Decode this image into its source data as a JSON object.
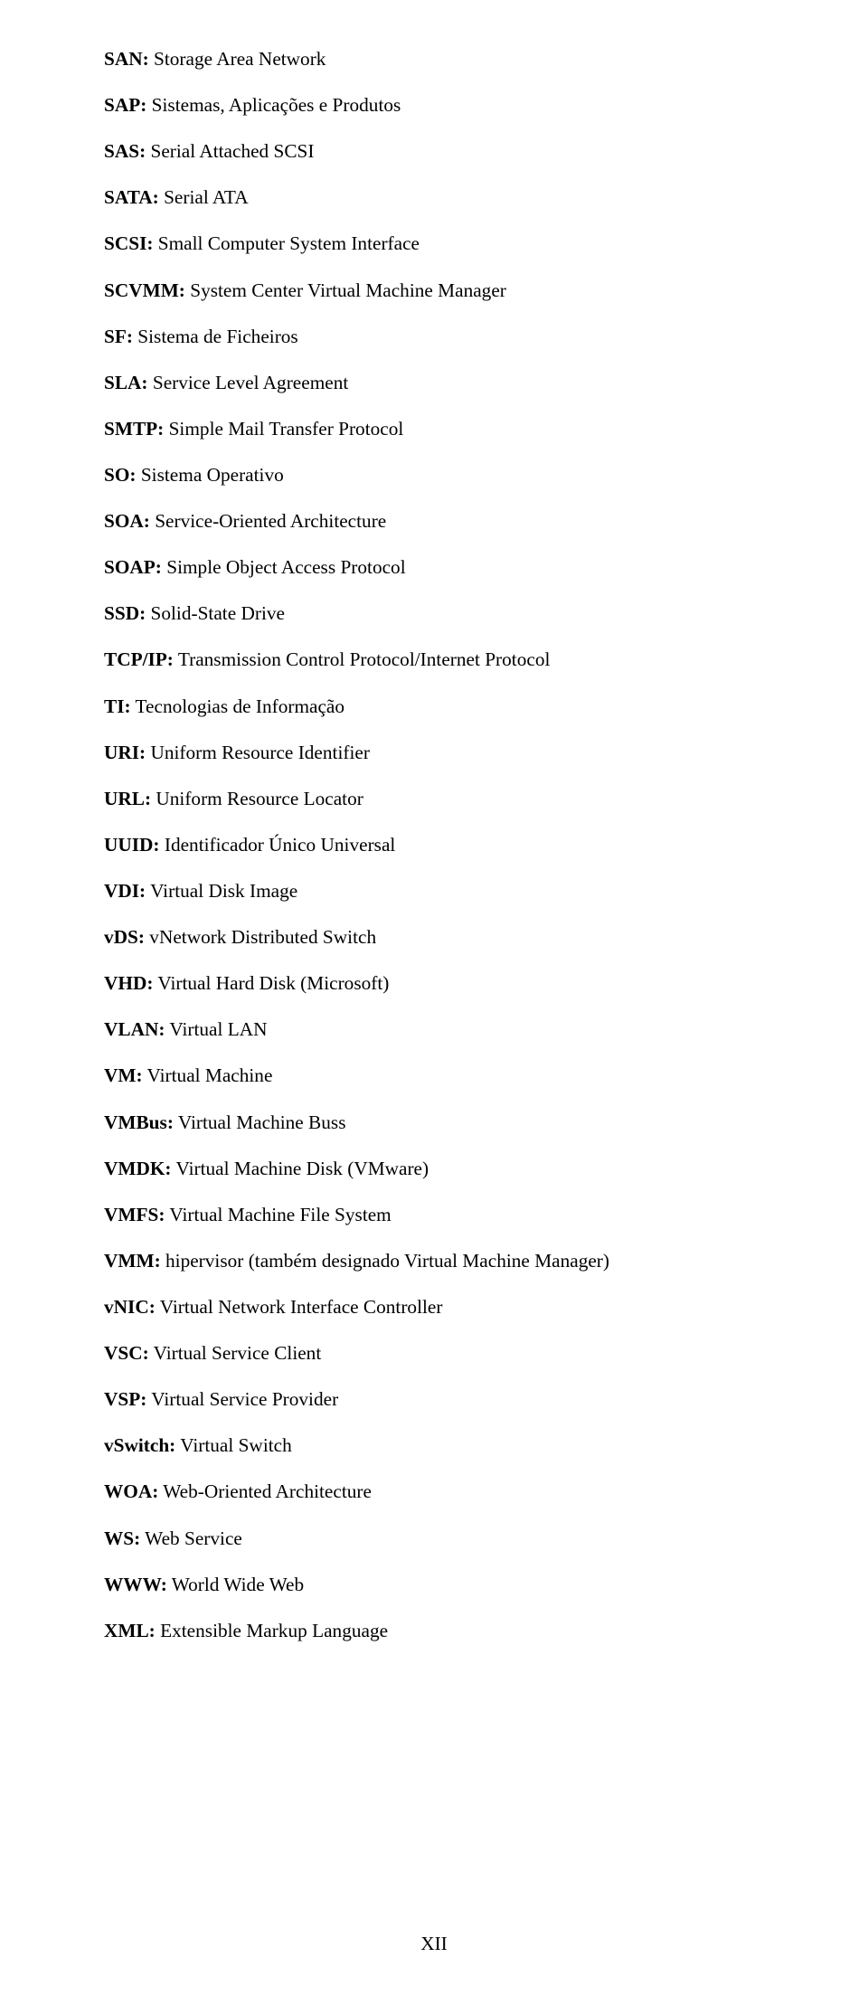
{
  "page_number": "XII",
  "entries": [
    {
      "abbr": "SAN:",
      "def": " Storage Area Network"
    },
    {
      "abbr": "SAP:",
      "def": " Sistemas, Aplicações e Produtos"
    },
    {
      "abbr": "SAS:",
      "def": " Serial Attached SCSI"
    },
    {
      "abbr": "SATA:",
      "def": " Serial ATA"
    },
    {
      "abbr": "SCSI:",
      "def": " Small Computer System Interface"
    },
    {
      "abbr": "SCVMM:",
      "def": " System Center Virtual Machine Manager"
    },
    {
      "abbr": "SF:",
      "def": " Sistema de Ficheiros"
    },
    {
      "abbr": "SLA:",
      "def": " Service Level Agreement"
    },
    {
      "abbr": "SMTP:",
      "def": " Simple Mail Transfer Protocol"
    },
    {
      "abbr": "SO:",
      "def": " Sistema Operativo"
    },
    {
      "abbr": "SOA:",
      "def": " Service-Oriented Architecture"
    },
    {
      "abbr": "SOAP:",
      "def": " Simple Object Access Protocol"
    },
    {
      "abbr": "SSD:",
      "def": " Solid-State Drive"
    },
    {
      "abbr": "TCP/IP:",
      "def": " Transmission Control Protocol/Internet Protocol"
    },
    {
      "abbr": "TI:",
      "def": " Tecnologias de Informação"
    },
    {
      "abbr": "URI:",
      "def": " Uniform Resource Identifier"
    },
    {
      "abbr": "URL:",
      "def": " Uniform Resource Locator"
    },
    {
      "abbr": "UUID:",
      "def": " Identificador Único Universal"
    },
    {
      "abbr": "VDI:",
      "def": " Virtual Disk Image"
    },
    {
      "abbr": "vDS:",
      "def": " vNetwork Distributed Switch"
    },
    {
      "abbr": "VHD:",
      "def": " Virtual Hard Disk (Microsoft)"
    },
    {
      "abbr": "VLAN:",
      "def": " Virtual LAN"
    },
    {
      "abbr": "VM:",
      "def": " Virtual Machine"
    },
    {
      "abbr": "VMBus:",
      "def": " Virtual Machine Buss"
    },
    {
      "abbr": "VMDK:",
      "def": " Virtual Machine Disk (VMware)"
    },
    {
      "abbr": "VMFS:",
      "def": " Virtual Machine File System"
    },
    {
      "abbr": "VMM:",
      "def": " hipervisor (também designado Virtual Machine Manager)"
    },
    {
      "abbr": "vNIC:",
      "def": " Virtual Network Interface Controller"
    },
    {
      "abbr": "VSC:",
      "def": " Virtual Service Client"
    },
    {
      "abbr": "VSP:",
      "def": " Virtual Service Provider"
    },
    {
      "abbr": "vSwitch:",
      "def": " Virtual Switch"
    },
    {
      "abbr": "WOA:",
      "def": " Web-Oriented Architecture"
    },
    {
      "abbr": "WS:",
      "def": " Web Service"
    },
    {
      "abbr": "WWW:",
      "def": " World Wide Web"
    },
    {
      "abbr": "XML:",
      "def": " Extensible Markup Language"
    }
  ]
}
